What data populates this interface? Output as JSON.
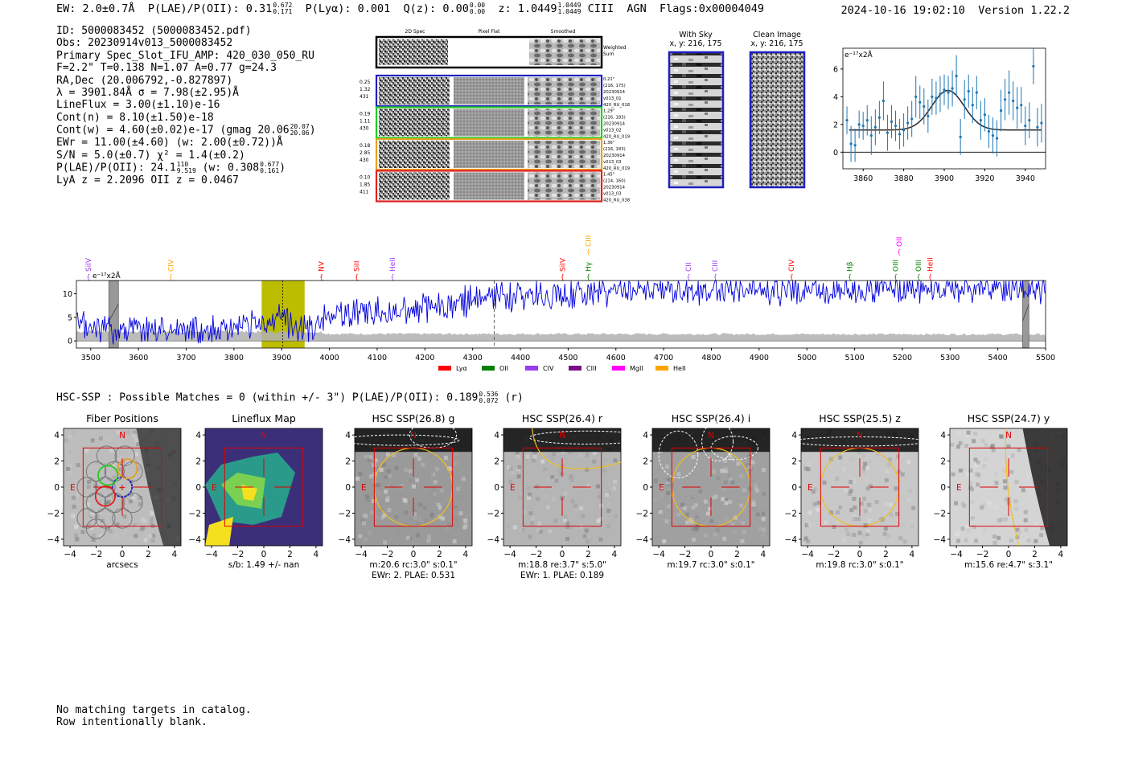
{
  "header": {
    "ew_label": "EW: 2.0±0.7Å",
    "plae_label": "P(LAE)/P(OII): 0.31",
    "plae_hi": "0.672",
    "plae_lo": "0.171",
    "plya_label": "P(Lyα): 0.001",
    "qz_label": "Q(z): 0.00",
    "qz_hi": "0.00",
    "qz_lo": "0.00",
    "z_label": "z: 1.0449",
    "z_hi": "1.0449",
    "z_lo": "1.0449",
    "line_label": "CIII",
    "agn_label": "AGN",
    "flags_label": "Flags:0x00004049",
    "timestamp": "2024-10-16 19:02:10",
    "version": "Version 1.22.2"
  },
  "info": {
    "id_line": "ID: 5000083452 (5000083452.pdf)",
    "obs_line": "Obs: 20230914v013_5000083452",
    "primary_line": "Primary Spec_Slot_IFU_AMP: 420_030_050_RU",
    "params_line": "F=2.2\"  T=0.138  N=1.07  A=0.77  g=24.3",
    "radec_line": "RA,Dec (20.006792,-0.827897)",
    "lambda_line": "λ = 3901.84Å  σ = 7.98(±2.95)Å",
    "lineflux_line": "LineFlux = 3.00(±1.10)e-16",
    "contn_line": "Cont(n) = 8.10(±1.50)e-18",
    "contw_line": "Cont(w) = 4.60(±0.02)e-17 (gmag 20.06",
    "contw_hi": "20.07",
    "contw_lo": "20.06",
    "contw_close": ")",
    "ewr_line": "EWr = 11.00(±4.60) (w: 2.00(±0.72))Å",
    "sn_line": "S/N = 5.0(±0.7)  χ² = 1.4(±0.2)",
    "plae_line": "P(LAE)/P(OII): 24.1",
    "plae_line_hi": "110",
    "plae_line_lo": "9.519",
    "plae_line_mid": "(w: 0.308",
    "plae_line_whi": "0.677",
    "plae_line_wlo": "0.161",
    "plae_line_close": ")",
    "z_line": "LyA z = 2.2096  OII z = 0.0467"
  },
  "cutouts": {
    "col_2d": "2D Spec",
    "col_flat": "Pixel Flat",
    "col_smooth": "Smoothed",
    "weighted_label_1": "Weighted",
    "weighted_label_2": "Sum",
    "rows": [
      {
        "color": "#1f1fbf",
        "left": [
          "0.25",
          "1.32",
          "431"
        ],
        "right": [
          "0.21\"",
          "(216, 175)",
          "20230914",
          "v013_01",
          "420_RU_018"
        ]
      },
      {
        "color": "#22cc22",
        "left": [
          "0.19",
          "1.11",
          "430"
        ],
        "right": [
          "1.29\"",
          "(216, 183)",
          "20230914",
          "v013_02",
          "420_RU_019"
        ]
      },
      {
        "color": "#e8a020",
        "left": [
          "0.18",
          "2.85",
          "430"
        ],
        "right": [
          "1.36\"",
          "(216, 183)",
          "20230914",
          "v013_03",
          "420_RU_019"
        ]
      },
      {
        "color": "#e02020",
        "left": [
          "0.10",
          "1.85",
          "411"
        ],
        "right": [
          "1.45\"",
          "(214, 160)",
          "20230914",
          "v013_03",
          "420_RU_038"
        ]
      }
    ]
  },
  "sky_images": {
    "with_sky_title": "With Sky",
    "with_sky_coords": "x, y: 216, 175",
    "clean_title": "Clean Image",
    "clean_coords": "x, y: 216, 175"
  },
  "colors": {
    "spectrum_blue": "#0000dd",
    "error_gray": "#b0b0b0",
    "fit_line": "#333333",
    "points": "#1f77b4",
    "lya_red": "#ff0000",
    "oii_green": "#008000",
    "civ_purple": "#9a3cf0",
    "ciii_purple": "#7a0f86",
    "mgii_magenta": "#ff00ff",
    "heii_orange": "#ffa500",
    "window_olive": "#bdbd00",
    "hsc_box_red": "#e00000",
    "aperture_gold": "#f0c020"
  },
  "chart_data": [
    {
      "id": "zoom-fit",
      "type": "scatter",
      "title": "",
      "ylabel": "e⁻¹⁷x2Å",
      "xlim": [
        3850,
        3950
      ],
      "ylim": [
        -1.2,
        7.5
      ],
      "xticks": [
        3860,
        3880,
        3900,
        3920,
        3940
      ],
      "yticks": [
        0,
        2,
        4,
        6
      ],
      "x": [
        3852,
        3854,
        3856,
        3858,
        3860,
        3862,
        3864,
        3866,
        3868,
        3870,
        3872,
        3874,
        3876,
        3878,
        3880,
        3882,
        3884,
        3886,
        3888,
        3890,
        3892,
        3894,
        3896,
        3898,
        3900,
        3902,
        3904,
        3906,
        3908,
        3910,
        3912,
        3914,
        3916,
        3918,
        3920,
        3922,
        3924,
        3926,
        3928,
        3930,
        3932,
        3934,
        3936,
        3938,
        3940,
        3942,
        3944,
        3946,
        3948
      ],
      "y": [
        2.3,
        0.6,
        0.5,
        2.0,
        1.9,
        2.3,
        1.2,
        1.8,
        2.5,
        3.7,
        1.4,
        2.2,
        1.9,
        1.3,
        1.6,
        2.1,
        2.4,
        4.0,
        3.6,
        3.3,
        2.6,
        4.0,
        3.9,
        4.2,
        4.5,
        4.3,
        4.6,
        5.5,
        1.1,
        3.8,
        4.4,
        3.4,
        4.3,
        2.3,
        2.7,
        1.5,
        1.2,
        1.0,
        3.0,
        3.8,
        4.3,
        3.7,
        3.2,
        3.4,
        1.9,
        2.3,
        6.2,
        1.8,
        2.1
      ],
      "yerr": [
        1.0,
        1.3,
        1.2,
        1.0,
        1.0,
        1.1,
        1.4,
        1.3,
        1.2,
        1.4,
        1.3,
        1.2,
        1.1,
        1.1,
        1.2,
        1.2,
        1.3,
        1.5,
        1.2,
        1.3,
        1.2,
        1.3,
        1.2,
        1.3,
        1.1,
        1.2,
        1.3,
        1.5,
        1.3,
        1.4,
        1.2,
        1.3,
        1.2,
        1.4,
        1.2,
        1.2,
        1.3,
        1.3,
        1.5,
        1.5,
        1.6,
        1.4,
        1.5,
        1.3,
        1.4,
        1.3,
        1.3,
        1.4,
        1.4
      ],
      "fit": {
        "continuum": 1.6,
        "amplitude": 2.85,
        "center": 3901.84,
        "sigma": 7.98
      }
    },
    {
      "id": "full-spectrum",
      "type": "line",
      "ylabel": "e⁻¹⁷x2Å",
      "xlim": [
        3470,
        5500
      ],
      "ylim": [
        -1.5,
        12.8
      ],
      "xticks": [
        3500,
        3600,
        3700,
        3800,
        3900,
        4000,
        4100,
        4200,
        4300,
        4400,
        4500,
        4600,
        4700,
        4800,
        4900,
        5000,
        5100,
        5200,
        5300,
        5400,
        5500
      ],
      "yticks": [
        0,
        5,
        10
      ],
      "flux_trend": [
        [
          3470,
          3.0
        ],
        [
          3600,
          2.5
        ],
        [
          3800,
          2.5
        ],
        [
          3900,
          4.0
        ],
        [
          3960,
          2.5
        ],
        [
          4000,
          5.5
        ],
        [
          4100,
          6.0
        ],
        [
          4200,
          7.0
        ],
        [
          4300,
          8.5
        ],
        [
          4400,
          9.3
        ],
        [
          4500,
          10.0
        ],
        [
          4600,
          10.3
        ],
        [
          4700,
          10.6
        ],
        [
          4800,
          10.7
        ],
        [
          4900,
          10.8
        ],
        [
          5000,
          10.8
        ],
        [
          5100,
          10.8
        ],
        [
          5200,
          10.9
        ],
        [
          5300,
          10.9
        ],
        [
          5400,
          10.9
        ],
        [
          5500,
          10.9
        ]
      ],
      "error_level": [
        [
          3470,
          2.0
        ],
        [
          3980,
          1.9
        ],
        [
          4000,
          1.5
        ],
        [
          5500,
          1.4
        ]
      ],
      "highlight_window": [
        3858,
        3948
      ],
      "fit_line_x": 3901.84,
      "dashed_line_x": 4345,
      "masked_regions": [
        [
          3538,
          3558
        ],
        [
          5452,
          5465
        ]
      ],
      "line_markers": [
        {
          "name": "SiIV",
          "x": 3495,
          "color": "#9a3cf0",
          "row": 1
        },
        {
          "name": "CIV",
          "x": 3668,
          "color": "#ffa500",
          "row": 1
        },
        {
          "name": "NV",
          "x": 3983,
          "color": "#ff0000",
          "row": 1
        },
        {
          "name": "SiII",
          "x": 4057,
          "color": "#ff0000",
          "row": 1
        },
        {
          "name": "HeII",
          "x": 4132,
          "color": "#9a3cf0",
          "row": 1
        },
        {
          "name": "SiIV",
          "x": 4488,
          "color": "#ff0000",
          "row": 1
        },
        {
          "name": "Hγ",
          "x": 4542,
          "color": "#008000",
          "row": 1
        },
        {
          "name": "CIII",
          "x": 4542,
          "color": "#ffa500",
          "row": 0
        },
        {
          "name": "CII",
          "x": 4752,
          "color": "#9a3cf0",
          "row": 1
        },
        {
          "name": "CIII",
          "x": 4808,
          "color": "#9a3cf0",
          "row": 1
        },
        {
          "name": "CIV",
          "x": 4968,
          "color": "#ff0000",
          "row": 1
        },
        {
          "name": "Hβ",
          "x": 5090,
          "color": "#008000",
          "row": 1
        },
        {
          "name": "OII",
          "x": 5193,
          "color": "#ff00ff",
          "row": 0
        },
        {
          "name": "OIII",
          "x": 5186,
          "color": "#008000",
          "row": 1
        },
        {
          "name": "OIII",
          "x": 5234,
          "color": "#008000",
          "row": 1
        },
        {
          "name": "HeII",
          "x": 5258,
          "color": "#ff0000",
          "row": 1
        }
      ],
      "legend": [
        {
          "name": "Lyα",
          "color": "#ff0000"
        },
        {
          "name": "OII",
          "color": "#008000"
        },
        {
          "name": "CIV",
          "color": "#9a3cf0"
        },
        {
          "name": "CIII",
          "color": "#7a0f86"
        },
        {
          "name": "MgII",
          "color": "#ff00ff"
        },
        {
          "name": "HeII",
          "color": "#ffa500"
        }
      ],
      "legend_placement": "bottom-center"
    }
  ],
  "hsc": {
    "title_text": "HSC-SSP : Possible Matches = 0 (within +/- 3\")  P(LAE)/P(OII): 0.189",
    "title_hi": "0.536",
    "title_lo": "0.072",
    "title_band": "(r)",
    "axis_ticks": [
      "−4",
      "−2",
      "0",
      "2",
      "4"
    ],
    "axis_values": [
      -4,
      -2,
      0,
      2,
      4
    ],
    "north_label": "N",
    "east_label": "E",
    "panels": [
      {
        "title": "Fiber Positions",
        "cap1": "arcsecs",
        "cap2": ""
      },
      {
        "title": "Lineflux Map",
        "cap1": "s/b: 1.49 +/- nan",
        "cap2": ""
      },
      {
        "title": "HSC SSP(26.8) g",
        "cap1": "m:20.6 rc:3.0\"  s:0.1\"",
        "cap2": "EWr: 2. PLAE: 0.531"
      },
      {
        "title": "HSC SSP(26.4) r",
        "cap1": "m:18.8  re:3.7\"  s:5.0\"",
        "cap2": "EWr: 1. PLAE: 0.189"
      },
      {
        "title": "HSC SSP(26.4) i",
        "cap1": "m:19.7 rc:3.0\"  s:0.1\"",
        "cap2": ""
      },
      {
        "title": "HSC SSP(25.5) z",
        "cap1": "m:19.8 rc:3.0\"  s:0.1\"",
        "cap2": ""
      },
      {
        "title": "HSC SSP(24.7) y",
        "cap1": "m:15.6  re:4.7\"  s:3.1\"",
        "cap2": ""
      }
    ]
  },
  "footer": {
    "line1": "No matching targets in catalog.",
    "line2": "Row intentionally blank."
  }
}
